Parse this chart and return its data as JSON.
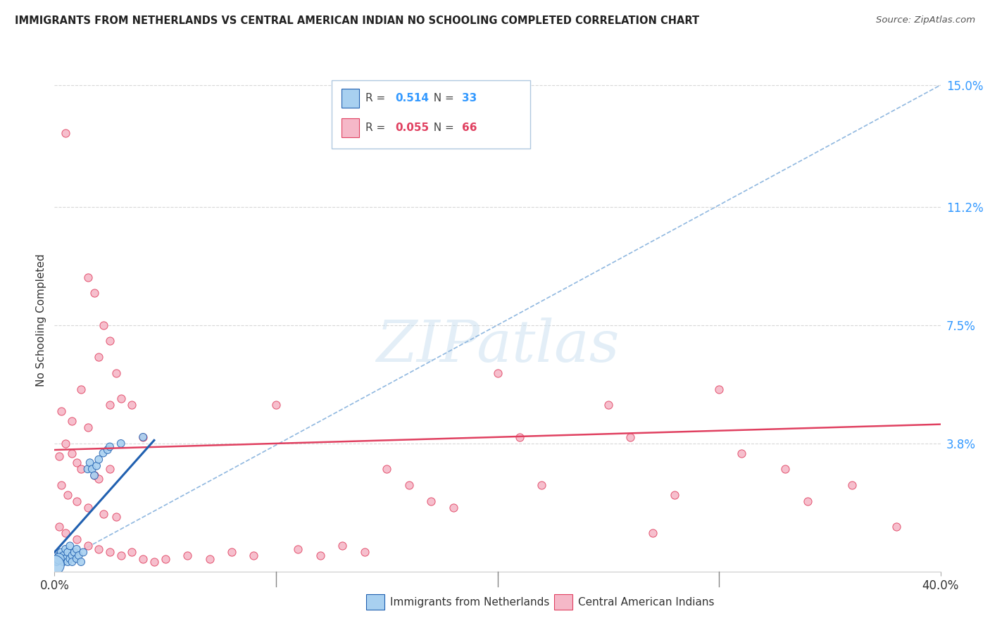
{
  "title": "IMMIGRANTS FROM NETHERLANDS VS CENTRAL AMERICAN INDIAN NO SCHOOLING COMPLETED CORRELATION CHART",
  "source": "Source: ZipAtlas.com",
  "ylabel": "No Schooling Completed",
  "xlim": [
    0.0,
    0.4
  ],
  "ylim": [
    -0.002,
    0.155
  ],
  "yticks": [
    0.038,
    0.075,
    0.112,
    0.15
  ],
  "ytick_labels": [
    "3.8%",
    "7.5%",
    "11.2%",
    "15.0%"
  ],
  "xticks": [
    0.0,
    0.1,
    0.2,
    0.3,
    0.4
  ],
  "xtick_labels": [
    "0.0%",
    "",
    "",
    "",
    "40.0%"
  ],
  "legend_r1_label": "R =  0.514   N = 33",
  "legend_r2_label": "R =  0.055   N = 66",
  "r1_val": "0.514",
  "n1_val": "33",
  "r2_val": "0.055",
  "n2_val": "66",
  "series1_color": "#a8d0f0",
  "series2_color": "#f5b8c8",
  "trendline1_color": "#2060b0",
  "trendline2_color": "#e04060",
  "dashed_color": "#90b8e0",
  "watermark": "ZIPatlas",
  "watermark_color": "#c8dff0",
  "blue_dots": [
    [
      0.001,
      0.001
    ],
    [
      0.002,
      0.003
    ],
    [
      0.003,
      0.002
    ],
    [
      0.003,
      0.004
    ],
    [
      0.004,
      0.001
    ],
    [
      0.004,
      0.003
    ],
    [
      0.005,
      0.002
    ],
    [
      0.005,
      0.005
    ],
    [
      0.006,
      0.001
    ],
    [
      0.006,
      0.004
    ],
    [
      0.007,
      0.002
    ],
    [
      0.007,
      0.006
    ],
    [
      0.008,
      0.003
    ],
    [
      0.008,
      0.001
    ],
    [
      0.009,
      0.004
    ],
    [
      0.01,
      0.002
    ],
    [
      0.01,
      0.005
    ],
    [
      0.011,
      0.003
    ],
    [
      0.012,
      0.001
    ],
    [
      0.013,
      0.004
    ],
    [
      0.015,
      0.03
    ],
    [
      0.016,
      0.032
    ],
    [
      0.017,
      0.03
    ],
    [
      0.018,
      0.028
    ],
    [
      0.019,
      0.031
    ],
    [
      0.02,
      0.033
    ],
    [
      0.022,
      0.035
    ],
    [
      0.024,
      0.036
    ],
    [
      0.025,
      0.037
    ],
    [
      0.03,
      0.038
    ],
    [
      0.04,
      0.04
    ],
    [
      0.002,
      0.002
    ],
    [
      0.0,
      0.0
    ]
  ],
  "blue_sizes": [
    60,
    60,
    60,
    60,
    60,
    60,
    60,
    60,
    60,
    60,
    60,
    60,
    60,
    60,
    60,
    60,
    60,
    60,
    60,
    60,
    60,
    60,
    60,
    60,
    60,
    60,
    60,
    60,
    60,
    60,
    60,
    120,
    400
  ],
  "pink_dots": [
    [
      0.005,
      0.135
    ],
    [
      0.015,
      0.09
    ],
    [
      0.018,
      0.085
    ],
    [
      0.022,
      0.075
    ],
    [
      0.025,
      0.07
    ],
    [
      0.02,
      0.065
    ],
    [
      0.028,
      0.06
    ],
    [
      0.012,
      0.055
    ],
    [
      0.03,
      0.052
    ],
    [
      0.035,
      0.05
    ],
    [
      0.003,
      0.048
    ],
    [
      0.008,
      0.045
    ],
    [
      0.015,
      0.043
    ],
    [
      0.025,
      0.05
    ],
    [
      0.04,
      0.04
    ],
    [
      0.005,
      0.038
    ],
    [
      0.008,
      0.035
    ],
    [
      0.002,
      0.034
    ],
    [
      0.01,
      0.032
    ],
    [
      0.012,
      0.03
    ],
    [
      0.018,
      0.028
    ],
    [
      0.02,
      0.027
    ],
    [
      0.025,
      0.03
    ],
    [
      0.003,
      0.025
    ],
    [
      0.006,
      0.022
    ],
    [
      0.01,
      0.02
    ],
    [
      0.015,
      0.018
    ],
    [
      0.022,
      0.016
    ],
    [
      0.028,
      0.015
    ],
    [
      0.002,
      0.012
    ],
    [
      0.005,
      0.01
    ],
    [
      0.01,
      0.008
    ],
    [
      0.015,
      0.006
    ],
    [
      0.02,
      0.005
    ],
    [
      0.025,
      0.004
    ],
    [
      0.03,
      0.003
    ],
    [
      0.035,
      0.004
    ],
    [
      0.04,
      0.002
    ],
    [
      0.045,
      0.001
    ],
    [
      0.05,
      0.002
    ],
    [
      0.06,
      0.003
    ],
    [
      0.07,
      0.002
    ],
    [
      0.08,
      0.004
    ],
    [
      0.09,
      0.003
    ],
    [
      0.1,
      0.05
    ],
    [
      0.11,
      0.005
    ],
    [
      0.12,
      0.003
    ],
    [
      0.13,
      0.006
    ],
    [
      0.14,
      0.004
    ],
    [
      0.15,
      0.03
    ],
    [
      0.16,
      0.025
    ],
    [
      0.17,
      0.02
    ],
    [
      0.18,
      0.018
    ],
    [
      0.2,
      0.06
    ],
    [
      0.21,
      0.04
    ],
    [
      0.22,
      0.025
    ],
    [
      0.25,
      0.05
    ],
    [
      0.26,
      0.04
    ],
    [
      0.27,
      0.01
    ],
    [
      0.28,
      0.022
    ],
    [
      0.3,
      0.055
    ],
    [
      0.31,
      0.035
    ],
    [
      0.33,
      0.03
    ],
    [
      0.34,
      0.02
    ],
    [
      0.36,
      0.025
    ],
    [
      0.38,
      0.012
    ]
  ],
  "pink_size": 65,
  "grid_color": "#d8d8d8",
  "background_color": "#ffffff",
  "blue_trendline": [
    [
      0.0,
      0.004
    ],
    [
      0.045,
      0.039
    ]
  ],
  "pink_trendline": [
    [
      0.0,
      0.036
    ],
    [
      0.4,
      0.044
    ]
  ],
  "dashed_line": [
    [
      0.0,
      0.0
    ],
    [
      0.4,
      0.15
    ]
  ]
}
